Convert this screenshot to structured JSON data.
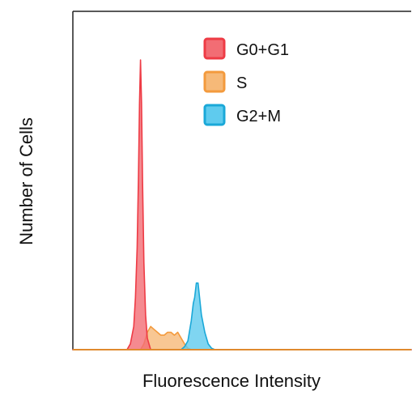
{
  "chart_data": {
    "type": "area",
    "title": "",
    "xlabel": "Fluorescence Intensity",
    "ylabel": "Number of Cells",
    "x_ticks": "none",
    "y_ticks": "none",
    "xlim": [
      0,
      100
    ],
    "ylim": [
      0,
      100
    ],
    "legend_position": "top-center",
    "series": [
      {
        "name": "G0+G1",
        "color": "#ee3b45",
        "fill": "#f26d74",
        "x": [
          0,
          16,
          17,
          18,
          18.5,
          19,
          19.4,
          19.7,
          20,
          20.3,
          20.6,
          21,
          21.5,
          22,
          23,
          100
        ],
        "values": [
          0,
          0,
          2,
          8,
          18,
          35,
          60,
          85,
          100,
          85,
          58,
          30,
          12,
          4,
          0,
          0
        ]
      },
      {
        "name": "S",
        "color": "#f39a3d",
        "fill": "#f6b978",
        "x": [
          0,
          20,
          21,
          22,
          23,
          24,
          25,
          26,
          27,
          28,
          29,
          30,
          31,
          32,
          33,
          34,
          35,
          100
        ],
        "values": [
          0,
          0,
          2,
          6,
          8,
          7,
          6,
          5,
          5,
          6,
          6,
          5,
          6,
          4,
          2,
          0.5,
          0,
          0
        ]
      },
      {
        "name": "G2+M",
        "color": "#1aa8d8",
        "fill": "#5fcbee",
        "x": [
          0,
          32,
          33,
          34,
          35,
          35.6,
          36,
          36.5,
          37,
          38,
          39,
          40,
          41,
          42,
          100
        ],
        "values": [
          0,
          0,
          1,
          3,
          10,
          16,
          18,
          23,
          23,
          12,
          6,
          2,
          0.5,
          0,
          0
        ]
      }
    ]
  }
}
